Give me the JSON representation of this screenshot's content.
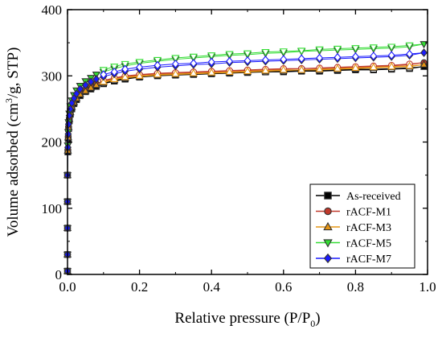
{
  "chart_data": {
    "type": "scatter",
    "title": "",
    "xlabel": {
      "main": "Relative pressure (P/P",
      "sub": "0",
      "end": ")"
    },
    "ylabel": {
      "main": "Volume adsorbed (cm",
      "sup": "3",
      "end": "/g, STP)"
    },
    "xlim": [
      0,
      1.0
    ],
    "ylim": [
      0,
      400
    ],
    "xticks": [
      0.0,
      0.2,
      0.4,
      0.6,
      0.8,
      1.0
    ],
    "xtick_labels": [
      "0.0",
      "0.2",
      "0.4",
      "0.6",
      "0.8",
      "1.0"
    ],
    "yticks": [
      0,
      100,
      200,
      300,
      400
    ],
    "ytick_labels": [
      "0",
      "100",
      "200",
      "300",
      "400"
    ],
    "grid": false,
    "legend_position": "bottom-right",
    "series": [
      {
        "name": "As-received",
        "marker": "square",
        "color": "#000000",
        "adsorption": {
          "x": [
            0.0,
            0.0,
            0.0,
            0.0,
            0.0,
            0.001,
            0.002,
            0.003,
            0.005,
            0.008,
            0.012,
            0.018,
            0.025,
            0.035,
            0.05,
            0.065,
            0.08,
            0.1,
            0.13,
            0.16,
            0.2,
            0.25,
            0.3,
            0.35,
            0.4,
            0.45,
            0.5,
            0.55,
            0.6,
            0.65,
            0.7,
            0.75,
            0.8,
            0.85,
            0.9,
            0.95,
            0.99
          ],
          "y": [
            5,
            30,
            70,
            110,
            150,
            185,
            205,
            220,
            232,
            242,
            250,
            258,
            264,
            270,
            276,
            280,
            284,
            288,
            292,
            295,
            298,
            300,
            301,
            302,
            303,
            304,
            305,
            306,
            306,
            307,
            307,
            308,
            309,
            309,
            310,
            311,
            314
          ]
        },
        "desorption": {
          "x": [
            0.95,
            0.9,
            0.85,
            0.8,
            0.75,
            0.7,
            0.65,
            0.6,
            0.55,
            0.5,
            0.45,
            0.4,
            0.35,
            0.3,
            0.25,
            0.2,
            0.16,
            0.13,
            0.1
          ],
          "y": [
            312,
            311,
            310,
            310,
            309,
            308,
            308,
            307,
            306,
            306,
            305,
            304,
            303,
            302,
            301,
            299,
            296,
            293,
            289
          ]
        }
      },
      {
        "name": "rACF-M1",
        "marker": "circle",
        "color": "#c0392b",
        "adsorption": {
          "x": [
            0.0,
            0.0,
            0.0,
            0.0,
            0.0,
            0.001,
            0.002,
            0.003,
            0.005,
            0.008,
            0.012,
            0.018,
            0.025,
            0.035,
            0.05,
            0.065,
            0.08,
            0.1,
            0.13,
            0.16,
            0.2,
            0.25,
            0.3,
            0.35,
            0.4,
            0.45,
            0.5,
            0.55,
            0.6,
            0.65,
            0.7,
            0.75,
            0.8,
            0.85,
            0.9,
            0.95,
            0.99
          ],
          "y": [
            5,
            30,
            70,
            110,
            150,
            188,
            208,
            223,
            236,
            246,
            254,
            261,
            268,
            274,
            279,
            284,
            288,
            292,
            296,
            299,
            301,
            303,
            304,
            305,
            306,
            307,
            308,
            309,
            310,
            311,
            311,
            312,
            313,
            314,
            315,
            317,
            320
          ]
        },
        "desorption": {
          "x": [
            0.95,
            0.9,
            0.85,
            0.8,
            0.75,
            0.7,
            0.65,
            0.6,
            0.55,
            0.5,
            0.45,
            0.4,
            0.35,
            0.3,
            0.25,
            0.2,
            0.16,
            0.13,
            0.1
          ],
          "y": [
            318,
            316,
            315,
            314,
            313,
            312,
            311,
            311,
            310,
            309,
            308,
            307,
            306,
            305,
            304,
            302,
            300,
            297,
            293
          ]
        }
      },
      {
        "name": "rACF-M3",
        "marker": "triangle-up",
        "color": "#e69514",
        "adsorption": {
          "x": [
            0.0,
            0.0,
            0.0,
            0.0,
            0.0,
            0.001,
            0.002,
            0.003,
            0.005,
            0.008,
            0.012,
            0.018,
            0.025,
            0.035,
            0.05,
            0.065,
            0.08,
            0.1,
            0.13,
            0.16,
            0.2,
            0.25,
            0.3,
            0.35,
            0.4,
            0.45,
            0.5,
            0.55,
            0.6,
            0.65,
            0.7,
            0.75,
            0.8,
            0.85,
            0.9,
            0.95,
            0.99
          ],
          "y": [
            5,
            30,
            70,
            110,
            150,
            187,
            207,
            222,
            235,
            245,
            253,
            260,
            266,
            272,
            277,
            282,
            286,
            290,
            294,
            297,
            299,
            301,
            302,
            303,
            304,
            305,
            306,
            307,
            308,
            309,
            309,
            310,
            311,
            312,
            313,
            314,
            317
          ]
        },
        "desorption": {
          "x": [
            0.95,
            0.9,
            0.85,
            0.8,
            0.75,
            0.7,
            0.65,
            0.6,
            0.55,
            0.5,
            0.45,
            0.4,
            0.35,
            0.3,
            0.25,
            0.2,
            0.16,
            0.13,
            0.1
          ],
          "y": [
            315,
            314,
            313,
            312,
            311,
            310,
            309,
            309,
            308,
            307,
            306,
            305,
            304,
            303,
            302,
            300,
            298,
            295,
            291
          ]
        }
      },
      {
        "name": "rACF-M5",
        "marker": "triangle-down",
        "color": "#33dd33",
        "adsorption": {
          "x": [
            0.0,
            0.0,
            0.0,
            0.0,
            0.0,
            0.001,
            0.002,
            0.003,
            0.005,
            0.008,
            0.012,
            0.018,
            0.025,
            0.035,
            0.05,
            0.065,
            0.08,
            0.1,
            0.13,
            0.16,
            0.2,
            0.25,
            0.3,
            0.35,
            0.4,
            0.45,
            0.5,
            0.55,
            0.6,
            0.65,
            0.7,
            0.75,
            0.8,
            0.85,
            0.9,
            0.95,
            0.99
          ],
          "y": [
            5,
            30,
            70,
            110,
            150,
            195,
            215,
            230,
            243,
            254,
            263,
            271,
            278,
            285,
            292,
            297,
            302,
            306,
            311,
            315,
            319,
            322,
            325,
            327,
            329,
            331,
            332,
            334,
            335,
            337,
            338,
            339,
            340,
            341,
            342,
            344,
            348
          ]
        },
        "desorption": {
          "x": [
            0.95,
            0.9,
            0.85,
            0.8,
            0.75,
            0.7,
            0.65,
            0.6,
            0.55,
            0.5,
            0.45,
            0.4,
            0.35,
            0.3,
            0.25,
            0.2,
            0.16,
            0.13,
            0.1
          ],
          "y": [
            346,
            344,
            343,
            342,
            341,
            340,
            338,
            337,
            336,
            334,
            333,
            331,
            329,
            327,
            324,
            321,
            318,
            314,
            309
          ]
        }
      },
      {
        "name": "rACF-M7",
        "marker": "diamond",
        "color": "#1a1aff",
        "adsorption": {
          "x": [
            0.0,
            0.0,
            0.0,
            0.0,
            0.0,
            0.001,
            0.002,
            0.003,
            0.005,
            0.008,
            0.012,
            0.018,
            0.025,
            0.035,
            0.05,
            0.065,
            0.08,
            0.1,
            0.13,
            0.16,
            0.2,
            0.25,
            0.3,
            0.35,
            0.4,
            0.45,
            0.5,
            0.55,
            0.6,
            0.65,
            0.7,
            0.75,
            0.8,
            0.85,
            0.9,
            0.95,
            0.99
          ],
          "y": [
            5,
            30,
            70,
            110,
            150,
            192,
            212,
            227,
            240,
            250,
            259,
            266,
            273,
            280,
            286,
            291,
            295,
            299,
            303,
            307,
            310,
            313,
            315,
            317,
            318,
            320,
            321,
            322,
            323,
            324,
            325,
            326,
            327,
            328,
            329,
            331,
            335
          ]
        },
        "desorption": {
          "x": [
            0.95,
            0.9,
            0.85,
            0.8,
            0.75,
            0.7,
            0.65,
            0.6,
            0.55,
            0.5,
            0.45,
            0.4,
            0.35,
            0.3,
            0.25,
            0.2,
            0.16,
            0.13,
            0.1
          ],
          "y": [
            333,
            331,
            330,
            329,
            328,
            327,
            326,
            325,
            324,
            323,
            322,
            321,
            319,
            318,
            316,
            313,
            310,
            306,
            302
          ]
        }
      }
    ]
  }
}
